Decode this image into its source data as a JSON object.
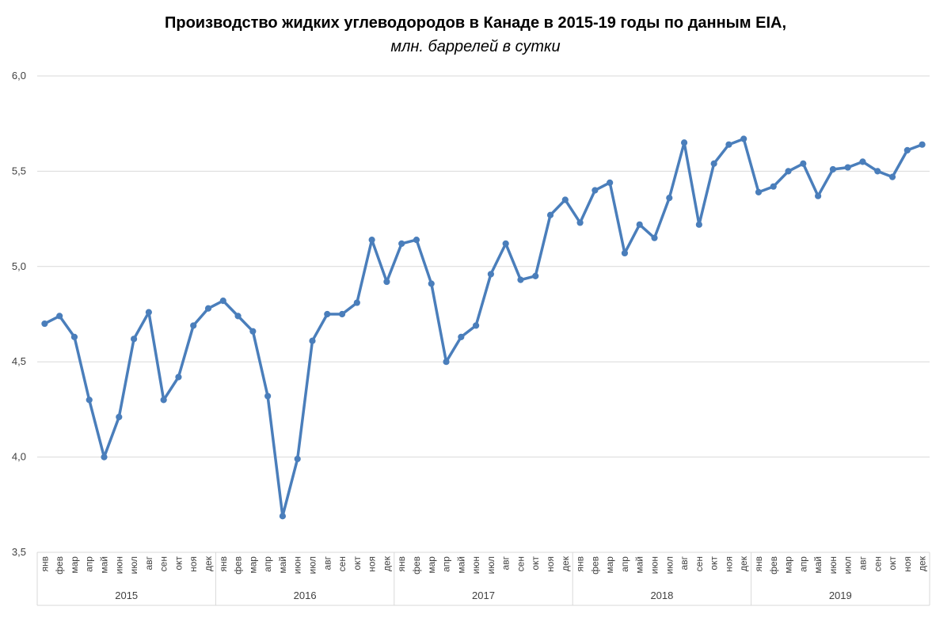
{
  "chart_data": {
    "type": "line",
    "title": "Производство жидких углеводородов в Канаде в 2015-19 годы по данным EIA,",
    "subtitle": "млн. баррелей в сутки",
    "ylim": [
      3.5,
      6.0
    ],
    "yticks": [
      "3,5",
      "4,0",
      "4,5",
      "5,0",
      "5,5",
      "6,0"
    ],
    "grid": true,
    "months": [
      "янв",
      "фев",
      "мар",
      "апр",
      "май",
      "июн",
      "июл",
      "авг",
      "сен",
      "окт",
      "ноя",
      "дек"
    ],
    "years": [
      "2015",
      "2016",
      "2017",
      "2018",
      "2019"
    ],
    "series": [
      {
        "color": "#4a7ebb",
        "values": [
          4.7,
          4.74,
          4.63,
          4.3,
          4.0,
          4.21,
          4.62,
          4.76,
          4.3,
          4.42,
          4.69,
          4.78,
          4.82,
          4.74,
          4.66,
          4.32,
          3.69,
          3.99,
          4.61,
          4.75,
          4.75,
          4.81,
          5.14,
          4.92,
          5.12,
          5.14,
          4.91,
          4.5,
          4.63,
          4.69,
          4.96,
          5.12,
          4.93,
          4.95,
          5.27,
          5.35,
          5.23,
          5.4,
          5.44,
          5.07,
          5.22,
          5.15,
          5.36,
          5.65,
          5.22,
          5.54,
          5.64,
          5.67,
          5.39,
          5.42,
          5.5,
          5.54,
          5.37,
          5.51,
          5.52,
          5.55,
          5.5,
          5.47,
          5.61,
          5.64
        ]
      }
    ]
  }
}
